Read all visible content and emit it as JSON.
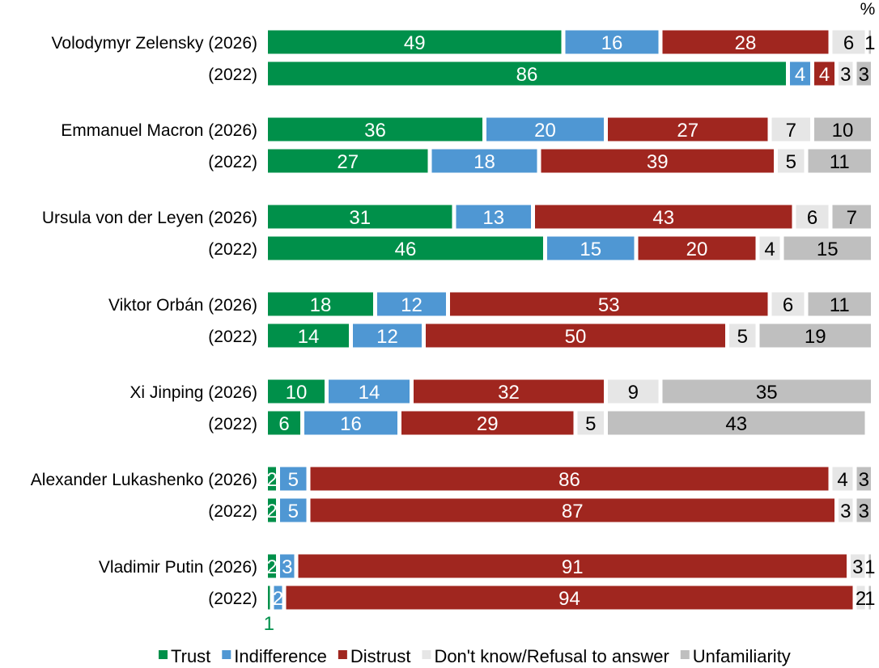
{
  "chart_data": {
    "type": "bar",
    "orientation": "horizontal",
    "stacked": true,
    "unit_label": "%",
    "xlim": [
      0,
      100
    ],
    "grid": false,
    "legend_placement": "bottom",
    "categories": [
      "Volodymyr Zelensky (2026)",
      "(2022)",
      "Emmanuel Macron (2026)",
      "(2022)",
      "Ursula von der Leyen (2026)",
      "(2022)",
      "Viktor Orbán (2026)",
      "(2022)",
      "Xi Jinping (2026)",
      "(2022)",
      "Alexander Lukashenko (2026)",
      "(2022)",
      "Vladimir Putin (2026)",
      "(2022)"
    ],
    "series": [
      {
        "name": "Trust",
        "color": "#00904a",
        "label_color": "#ffffff",
        "values": [
          49,
          86,
          36,
          27,
          31,
          46,
          18,
          14,
          10,
          6,
          2,
          2,
          2,
          1
        ]
      },
      {
        "name": "Indifference",
        "color": "#4f97d3",
        "label_color": "#ffffff",
        "values": [
          16,
          4,
          20,
          18,
          13,
          15,
          12,
          12,
          14,
          16,
          5,
          5,
          3,
          2
        ]
      },
      {
        "name": "Distrust",
        "color": "#a0261f",
        "label_color": "#ffffff",
        "values": [
          28,
          4,
          27,
          39,
          43,
          20,
          53,
          50,
          32,
          29,
          86,
          87,
          91,
          94
        ]
      },
      {
        "name": "Don't know/Refusal to answer",
        "color": "#e6e6e6",
        "label_color": "#000000",
        "values": [
          6,
          3,
          7,
          5,
          6,
          4,
          6,
          5,
          9,
          5,
          4,
          3,
          3,
          2
        ]
      },
      {
        "name": "Unfamiliarity",
        "color": "#bfbfbf",
        "label_color": "#000000",
        "values": [
          1,
          3,
          10,
          11,
          7,
          15,
          11,
          19,
          35,
          43,
          3,
          3,
          1,
          1
        ]
      }
    ]
  }
}
